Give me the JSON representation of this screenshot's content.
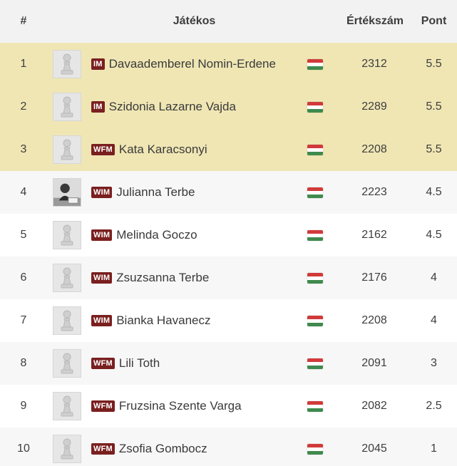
{
  "header": {
    "rank": "#",
    "player": "Játékos",
    "rating": "Értékszám",
    "points": "Pont"
  },
  "players": [
    {
      "rank": "1",
      "title": "IM",
      "name": "Davaademberel Nomin-Erdene",
      "rating": "2312",
      "points": "5.5",
      "avatar": "pawn-icon",
      "flag": "hungary-flag-icon"
    },
    {
      "rank": "2",
      "title": "IM",
      "name": "Szidonia Lazarne Vajda",
      "rating": "2289",
      "points": "5.5",
      "avatar": "pawn-icon",
      "flag": "hungary-flag-icon"
    },
    {
      "rank": "3",
      "title": "WFM",
      "name": "Kata Karacsonyi",
      "rating": "2208",
      "points": "5.5",
      "avatar": "pawn-icon",
      "flag": "hungary-flag-icon"
    },
    {
      "rank": "4",
      "title": "WIM",
      "name": "Julianna Terbe",
      "rating": "2223",
      "points": "4.5",
      "avatar": "photo",
      "flag": "hungary-flag-icon"
    },
    {
      "rank": "5",
      "title": "WIM",
      "name": "Melinda Goczo",
      "rating": "2162",
      "points": "4.5",
      "avatar": "pawn-icon",
      "flag": "hungary-flag-icon"
    },
    {
      "rank": "6",
      "title": "WIM",
      "name": "Zsuzsanna Terbe",
      "rating": "2176",
      "points": "4",
      "avatar": "pawn-icon",
      "flag": "hungary-flag-icon"
    },
    {
      "rank": "7",
      "title": "WIM",
      "name": "Bianka Havanecz",
      "rating": "2208",
      "points": "4",
      "avatar": "pawn-icon",
      "flag": "hungary-flag-icon"
    },
    {
      "rank": "8",
      "title": "WFM",
      "name": "Lili Toth",
      "rating": "2091",
      "points": "3",
      "avatar": "pawn-icon",
      "flag": "hungary-flag-icon"
    },
    {
      "rank": "9",
      "title": "WFM",
      "name": "Fruzsina Szente Varga",
      "rating": "2082",
      "points": "2.5",
      "avatar": "pawn-icon",
      "flag": "hungary-flag-icon"
    },
    {
      "rank": "10",
      "title": "WFM",
      "name": "Zsofia Gombocz",
      "rating": "2045",
      "points": "1",
      "avatar": "pawn-icon",
      "flag": "hungary-flag-icon"
    }
  ],
  "colors": {
    "highlight": "#f0e6b4",
    "badge": "#7a1f1f",
    "header_bg": "#f2f2f2"
  }
}
